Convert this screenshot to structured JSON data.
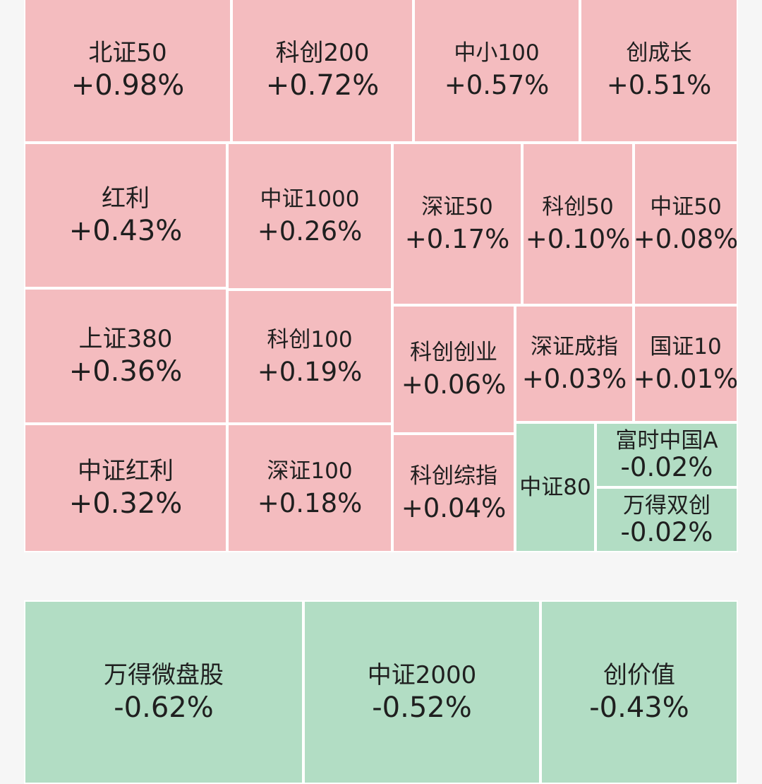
{
  "chart_data": {
    "type": "treemap",
    "title": "",
    "units": "%",
    "rising_color": "#f4bcbf",
    "falling_color": "#b2ddc4",
    "items": [
      {
        "name": "北证50",
        "change": 0.98,
        "label": "+0.98%"
      },
      {
        "name": "科创200",
        "change": 0.72,
        "label": "+0.72%"
      },
      {
        "name": "中小100",
        "change": 0.57,
        "label": "+0.57%"
      },
      {
        "name": "创成长",
        "change": 0.51,
        "label": "+0.51%"
      },
      {
        "name": "红利",
        "change": 0.43,
        "label": "+0.43%"
      },
      {
        "name": "中证1000",
        "change": 0.26,
        "label": "+0.26%"
      },
      {
        "name": "深证50",
        "change": 0.17,
        "label": "+0.17%"
      },
      {
        "name": "科创50",
        "change": 0.1,
        "label": "+0.10%"
      },
      {
        "name": "中证50",
        "change": 0.08,
        "label": "+0.08%"
      },
      {
        "name": "上证380",
        "change": 0.36,
        "label": "+0.36%"
      },
      {
        "name": "科创100",
        "change": 0.19,
        "label": "+0.19%"
      },
      {
        "name": "科创创业",
        "change": 0.06,
        "label": "+0.06%"
      },
      {
        "name": "深证成指",
        "change": 0.03,
        "label": "+0.03%"
      },
      {
        "name": "国证10",
        "change": 0.01,
        "label": "+0.01%"
      },
      {
        "name": "中证红利",
        "change": 0.32,
        "label": "+0.32%"
      },
      {
        "name": "深证100",
        "change": 0.18,
        "label": "+0.18%"
      },
      {
        "name": "科创综指",
        "change": 0.04,
        "label": "+0.04%"
      },
      {
        "name": "中证80",
        "change": null,
        "label": ""
      },
      {
        "name": "富时中国A",
        "change": -0.02,
        "label": "-0.02%"
      },
      {
        "name": "万得双创",
        "change": -0.02,
        "label": "-0.02%"
      },
      {
        "name": "万得微盘股",
        "change": -0.62,
        "label": "-0.62%"
      },
      {
        "name": "中证2000",
        "change": -0.52,
        "label": "-0.52%"
      },
      {
        "name": "创价值",
        "change": -0.43,
        "label": "-0.43%"
      }
    ]
  }
}
